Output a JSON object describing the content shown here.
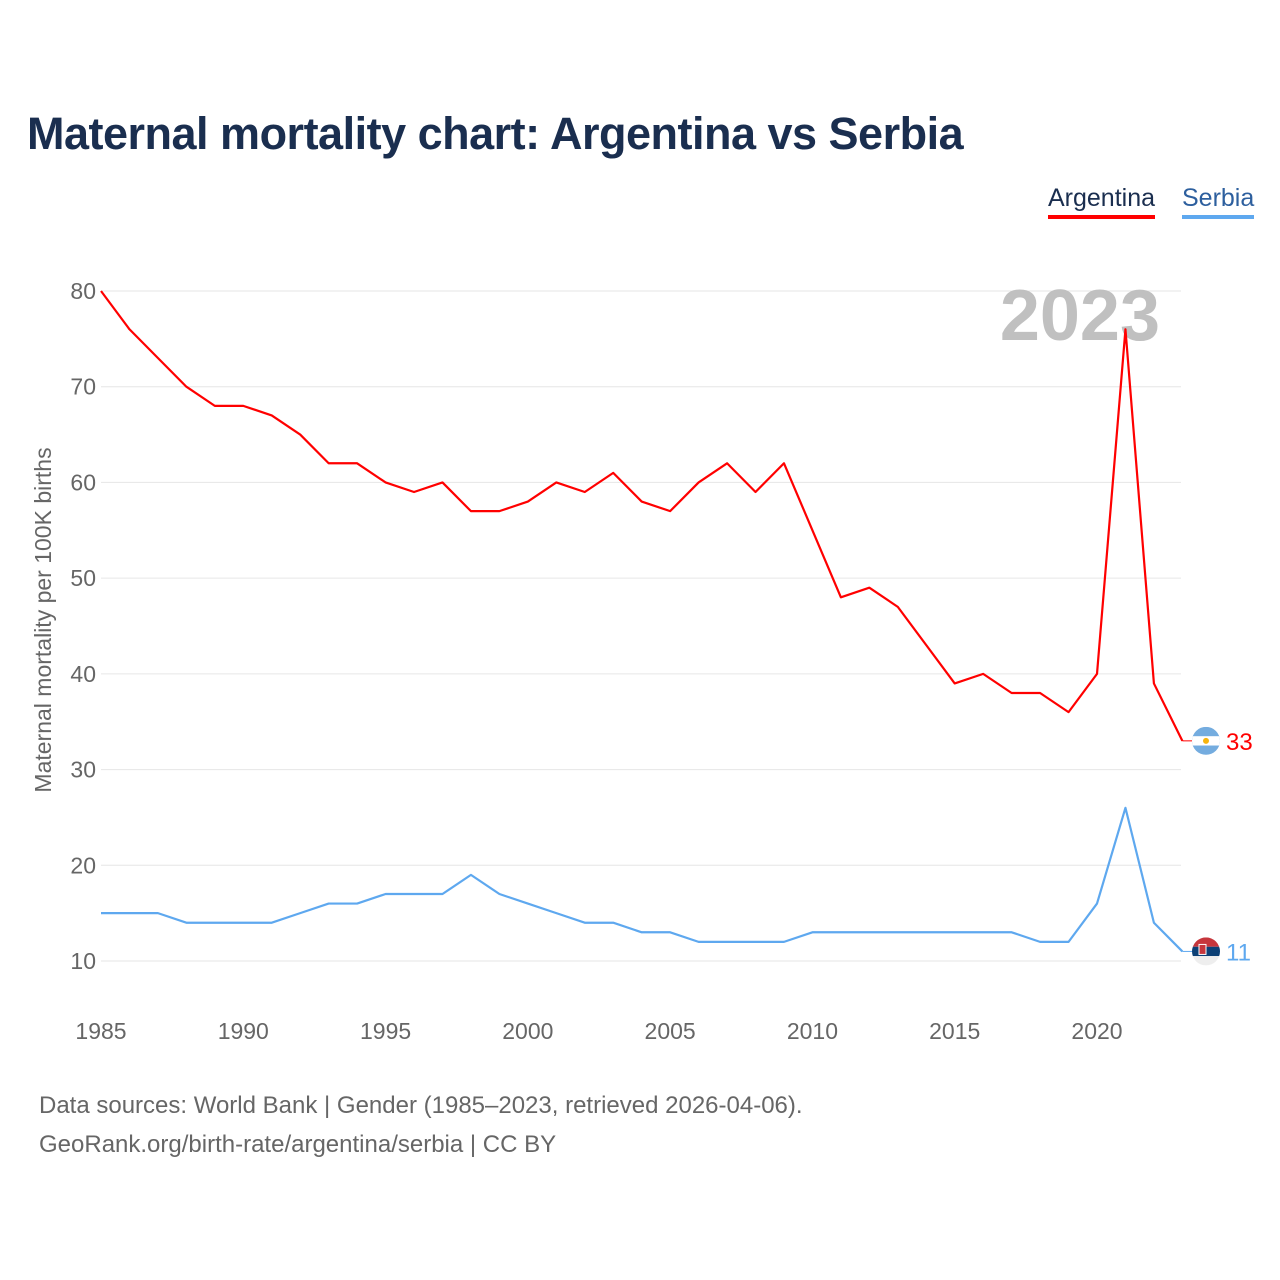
{
  "title": "Maternal mortality chart: Argentina vs Serbia",
  "footer": {
    "line1": "Data sources: World Bank | Gender (1985–2023, retrieved 2026-04-06).",
    "line2": "GeoRank.org/birth-rate/argentina/serbia | CC BY"
  },
  "chart_data": {
    "type": "line",
    "title": "Maternal mortality chart: Argentina vs Serbia",
    "ylabel": "Maternal mortality per 100K births",
    "xlabel": "",
    "year_label": "2023",
    "ylim": [
      5,
      85
    ],
    "xlim": [
      1985,
      2023
    ],
    "yticks": [
      "10",
      "20",
      "30",
      "40",
      "50",
      "60",
      "70",
      "80"
    ],
    "xticks": [
      "1985",
      "1990",
      "1995",
      "2000",
      "2005",
      "2010",
      "2015",
      "2020"
    ],
    "grid": true,
    "legend_position": "top-right",
    "x": [
      1985,
      1986,
      1987,
      1988,
      1989,
      1990,
      1991,
      1992,
      1993,
      1994,
      1995,
      1996,
      1997,
      1998,
      1999,
      2000,
      2001,
      2002,
      2003,
      2004,
      2005,
      2006,
      2007,
      2008,
      2009,
      2010,
      2011,
      2012,
      2013,
      2014,
      2015,
      2016,
      2017,
      2018,
      2019,
      2020,
      2021,
      2022,
      2023
    ],
    "series": [
      {
        "name": "Argentina",
        "color": "#ff0000",
        "end_label": "33",
        "flag": "argentina-flag",
        "values": [
          80,
          76,
          73,
          70,
          68,
          68,
          67,
          65,
          62,
          62,
          60,
          59,
          60,
          57,
          57,
          58,
          60,
          59,
          61,
          58,
          57,
          60,
          62,
          59,
          62,
          55,
          48,
          49,
          47,
          43,
          39,
          40,
          38,
          38,
          36,
          40,
          76,
          39,
          33
        ]
      },
      {
        "name": "Serbia",
        "color": "#5ea8ef",
        "end_label": "11",
        "flag": "serbia-flag",
        "values": [
          15,
          15,
          15,
          14,
          14,
          14,
          14,
          15,
          16,
          16,
          17,
          17,
          17,
          19,
          17,
          16,
          15,
          14,
          14,
          13,
          13,
          12,
          12,
          12,
          12,
          13,
          13,
          13,
          13,
          13,
          13,
          13,
          13,
          12,
          12,
          16,
          26,
          14,
          11
        ]
      }
    ]
  }
}
